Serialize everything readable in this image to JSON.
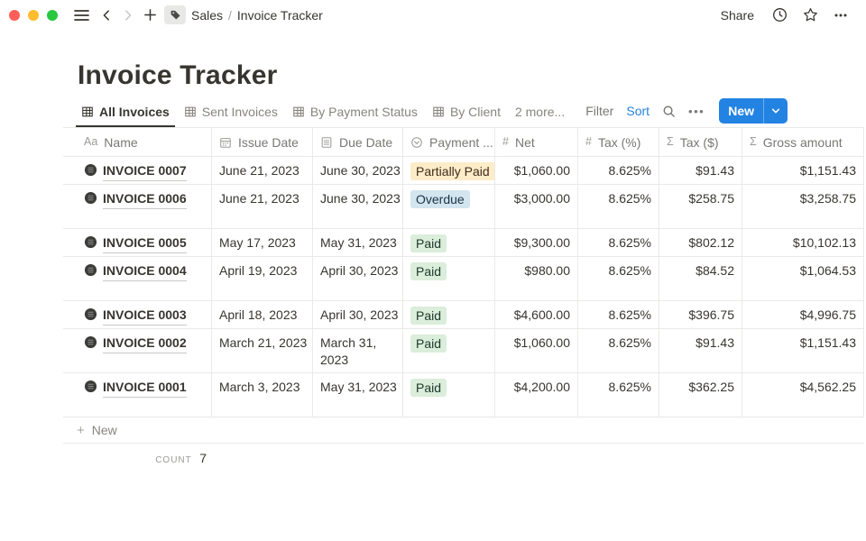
{
  "titlebar": {
    "breadcrumb": {
      "workspace": "Sales",
      "separator": "/",
      "page": "Invoice Tracker"
    },
    "share_label": "Share",
    "icons": {
      "traffic_lights": [
        "#FF5F57",
        "#FEBC2E",
        "#28C841"
      ],
      "left_icons": [
        "hamburger-icon",
        "chevron-left-icon",
        "chevron-right-icon",
        "plus-icon",
        "tag-icon"
      ],
      "right_icons": [
        "clock-icon",
        "star-icon",
        "ellipsis-icon"
      ]
    }
  },
  "page": {
    "title": "Invoice Tracker"
  },
  "tabs": [
    {
      "label": "All Invoices",
      "icon": "table",
      "active": true
    },
    {
      "label": "Sent Invoices",
      "icon": "table",
      "active": false
    },
    {
      "label": "By Payment Status",
      "icon": "table",
      "active": false
    },
    {
      "label": "By Client",
      "icon": "table",
      "active": false
    },
    {
      "label": "2 more...",
      "icon": "none",
      "active": false
    }
  ],
  "toolbar": {
    "filter_label": "Filter",
    "sort_label": "Sort",
    "search_icon": "magnifier",
    "more_icon": "ellipsis",
    "new_label": "New"
  },
  "table": {
    "columns": [
      {
        "label": "Name",
        "icon": "text"
      },
      {
        "label": "Issue Date",
        "icon": "calendar"
      },
      {
        "label": "Due Date",
        "icon": "document"
      },
      {
        "label": "Payment ...",
        "icon": "select"
      },
      {
        "label": "Net",
        "icon": "number"
      },
      {
        "label": "Tax (%)",
        "icon": "number"
      },
      {
        "label": "Tax ($)",
        "icon": "formula"
      },
      {
        "label": "Gross amount",
        "icon": "formula"
      }
    ],
    "rows": [
      {
        "name": "INVOICE 0007",
        "issue_date": "June 21, 2023",
        "due_date": "June 30, 2023",
        "payment_status": "Partially Paid",
        "status_color": "yellow",
        "net": "$1,060.00",
        "tax_pct": "8.625%",
        "tax_usd": "$91.43",
        "gross": "$1,151.43",
        "tall": false
      },
      {
        "name": "INVOICE 0006",
        "issue_date": "June 21, 2023",
        "due_date": "June 30, 2023",
        "payment_status": "Overdue",
        "status_color": "blue",
        "net": "$3,000.00",
        "tax_pct": "8.625%",
        "tax_usd": "$258.75",
        "gross": "$3,258.75",
        "tall": true
      },
      {
        "name": "INVOICE 0005",
        "issue_date": "May 17, 2023",
        "due_date": "May 31, 2023",
        "payment_status": "Paid",
        "status_color": "green",
        "net": "$9,300.00",
        "tax_pct": "8.625%",
        "tax_usd": "$802.12",
        "gross": "$10,102.13",
        "tall": false
      },
      {
        "name": "INVOICE 0004",
        "issue_date": "April 19, 2023",
        "due_date": "April 30, 2023",
        "payment_status": "Paid",
        "status_color": "green",
        "net": "$980.00",
        "tax_pct": "8.625%",
        "tax_usd": "$84.52",
        "gross": "$1,064.53",
        "tall": true
      },
      {
        "name": "INVOICE 0003",
        "issue_date": "April 18, 2023",
        "due_date": "April 30, 2023",
        "payment_status": "Paid",
        "status_color": "green",
        "net": "$4,600.00",
        "tax_pct": "8.625%",
        "tax_usd": "$396.75",
        "gross": "$4,996.75",
        "tall": false
      },
      {
        "name": "INVOICE 0002",
        "issue_date": "March 21, 2023",
        "due_date": "March 31, 2023",
        "payment_status": "Paid",
        "status_color": "green",
        "net": "$1,060.00",
        "tax_pct": "8.625%",
        "tax_usd": "$91.43",
        "gross": "$1,151.43",
        "tall": true
      },
      {
        "name": "INVOICE 0001",
        "issue_date": "March 3, 2023",
        "due_date": "May 31, 2023",
        "payment_status": "Paid",
        "status_color": "green",
        "net": "$4,200.00",
        "tax_pct": "8.625%",
        "tax_usd": "$362.25",
        "gross": "$4,562.25",
        "tall": true
      }
    ],
    "new_row_label": "New",
    "footer": {
      "count_label": "count",
      "count_value": "7"
    }
  },
  "colors": {
    "accent_blue": "#2383E2",
    "text_primary": "#37352F",
    "text_secondary": "#787774",
    "border": "#E9E9E7",
    "badges": {
      "yellow": {
        "bg": "#FDECC8",
        "text": "#402C1B"
      },
      "blue": {
        "bg": "#D3E5EF",
        "text": "#183347"
      },
      "green": {
        "bg": "#DBEDDB",
        "text": "#1C3829"
      }
    }
  }
}
